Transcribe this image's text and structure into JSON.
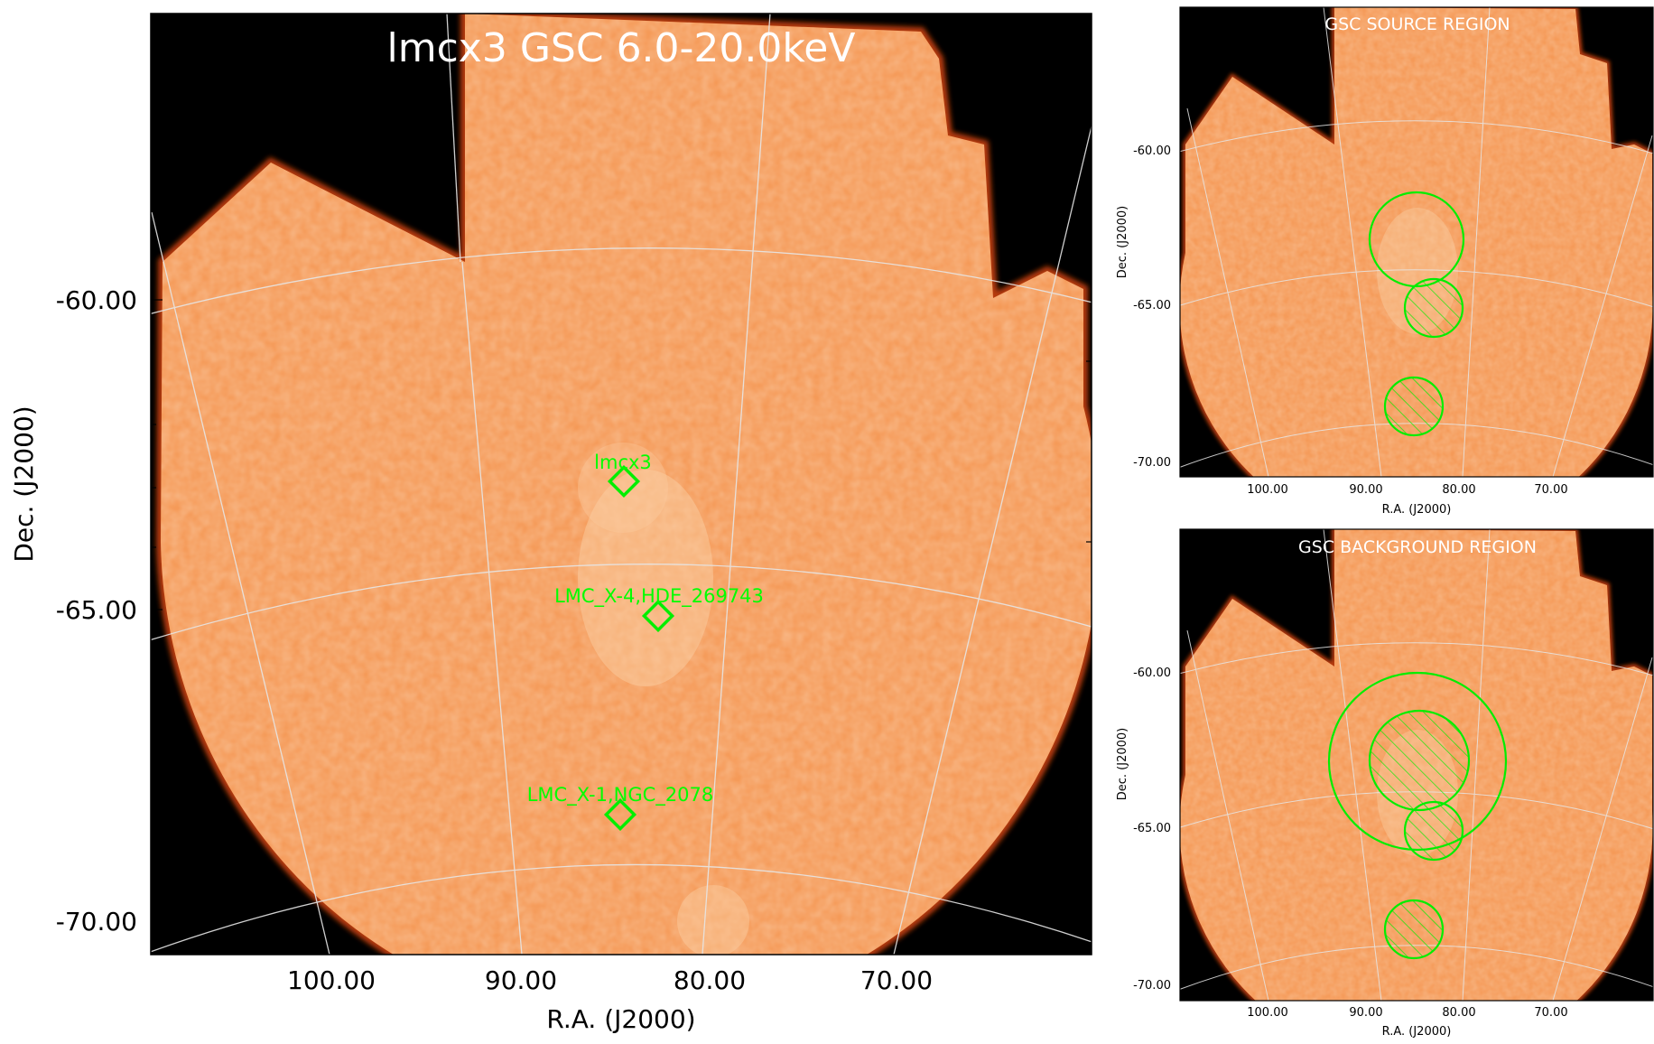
{
  "colors": {
    "background": "#000000",
    "image_fill": "#f59a58",
    "image_edge": "#b63a0c",
    "grid": "#e6e6e6",
    "region": "#00ee00",
    "title": "#ffffff"
  },
  "chart_data": [
    {
      "type": "heatmap",
      "title": "lmcx3 GSC 6.0-20.0keV",
      "xlabel": "R.A. (J2000)",
      "ylabel": "Dec. (J2000)",
      "x_ticks": [
        "100.00",
        "90.00",
        "80.00",
        "70.00"
      ],
      "y_ticks": [
        "-60.00",
        "-65.00",
        "-70.00"
      ],
      "xlim": [
        110,
        60
      ],
      "ylim": [
        -70.5,
        -55.3
      ],
      "grid": true,
      "colormap": "hot",
      "sources": [
        {
          "name": "lmcx3",
          "ra": 84.7,
          "dec": -64.1
        },
        {
          "name": "LMC_X-4,HDE_269743",
          "ra": 83.2,
          "dec": -66.4
        },
        {
          "name": "LMC_X-1,NGC_2078",
          "ra": 84.9,
          "dec": -69.7
        }
      ]
    },
    {
      "type": "heatmap",
      "title": "GSC SOURCE REGION",
      "xlabel": "R.A. (J2000)",
      "ylabel": "Dec. (J2000)",
      "x_ticks": [
        "100.00",
        "90.00",
        "80.00",
        "70.00"
      ],
      "y_ticks": [
        "-60.00",
        "-65.00",
        "-70.00"
      ],
      "xlim": [
        110,
        60
      ],
      "ylim": [
        -70.5,
        -55.3
      ],
      "grid": true,
      "regions": [
        {
          "kind": "include",
          "shape": "circle",
          "ra": 84.5,
          "dec": -63.0,
          "radius_deg": 1.5
        },
        {
          "kind": "exclude",
          "shape": "circle",
          "ra": 83.0,
          "dec": -65.1,
          "radius_deg": 1.0
        },
        {
          "kind": "exclude",
          "shape": "circle",
          "ra": 84.8,
          "dec": -68.3,
          "radius_deg": 1.0
        }
      ]
    },
    {
      "type": "heatmap",
      "title": "GSC BACKGROUND REGION",
      "xlabel": "R.A. (J2000)",
      "ylabel": "Dec. (J2000)",
      "x_ticks": [
        "100.00",
        "90.00",
        "80.00",
        "70.00"
      ],
      "y_ticks": [
        "-60.00",
        "-65.00",
        "-70.00"
      ],
      "xlim": [
        110,
        60
      ],
      "ylim": [
        -70.5,
        -55.3
      ],
      "grid": true,
      "regions": [
        {
          "kind": "include",
          "shape": "circle",
          "ra": 84.5,
          "dec": -63.0,
          "radius_deg": 3.0
        },
        {
          "kind": "exclude",
          "shape": "circle",
          "ra": 84.8,
          "dec": -63.0,
          "radius_deg": 1.6
        },
        {
          "kind": "exclude",
          "shape": "circle",
          "ra": 83.0,
          "dec": -65.1,
          "radius_deg": 1.0
        },
        {
          "kind": "exclude",
          "shape": "circle",
          "ra": 84.8,
          "dec": -68.3,
          "radius_deg": 1.0
        }
      ]
    }
  ]
}
